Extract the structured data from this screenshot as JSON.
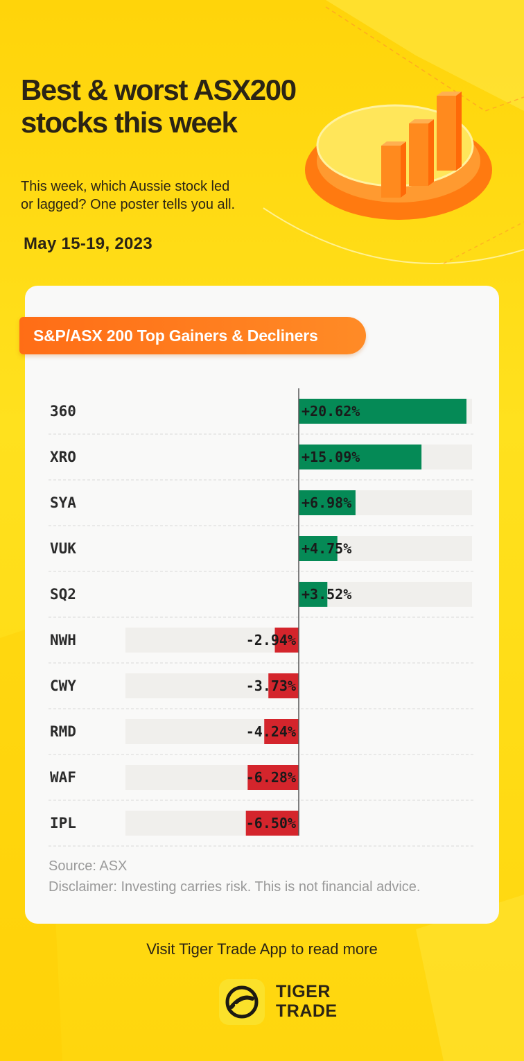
{
  "header": {
    "title_line1": "Best & worst ASX200",
    "title_line2": "stocks this week",
    "subtitle_line1": "This week, which Aussie stock led",
    "subtitle_line2": "or lagged? One poster tells you all.",
    "date": "May 15-19, 2023"
  },
  "card": {
    "ribbon_label": "S&P/ASX 200 Top Gainers & Decliners",
    "source": "Source: ASX",
    "disclaimer": "Disclaimer: Investing carries risk. This is not financial advice."
  },
  "footer": {
    "cta": "Visit Tiger Trade App to read more",
    "brand_line1": "TIGER",
    "brand_line2": "TRADE"
  },
  "colors": {
    "gain": "#058a56",
    "loss": "#d4252c",
    "track": "#f0efec",
    "accent": "#ff7a1c"
  },
  "chart_data": {
    "type": "bar",
    "orientation": "horizontal-diverging",
    "title": "S&P/ASX 200 Top Gainers & Decliners",
    "categories": [
      "360",
      "XRO",
      "SYA",
      "VUK",
      "SQ2",
      "NWH",
      "CWY",
      "RMD",
      "WAF",
      "IPL"
    ],
    "values": [
      20.62,
      15.09,
      6.98,
      4.75,
      3.52,
      -2.94,
      -3.73,
      -4.24,
      -6.28,
      -6.5
    ],
    "labels": [
      "+20.62%",
      "+15.09%",
      "+6.98%",
      "+4.75%",
      "+3.52%",
      "-2.94%",
      "-3.73%",
      "-4.24%",
      "-6.28%",
      "-6.50%"
    ],
    "xlim": [
      -20.62,
      20.62
    ],
    "unit": "%"
  }
}
